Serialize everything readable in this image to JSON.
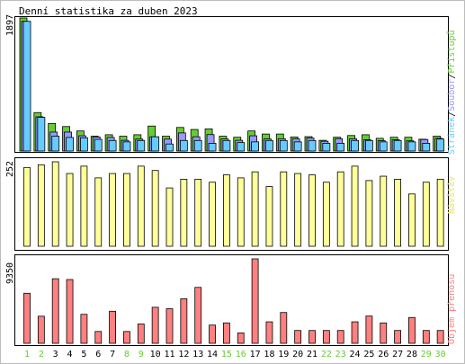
{
  "title": "Denní statistika za duben 2023",
  "colors": {
    "hits": "#66cc33",
    "files": "#9999ff",
    "pages": "#66ccff",
    "visits": "#ffff99",
    "kbytes": "#ff8080",
    "weekend_label": "#66cc33",
    "weekday_label": "#000000",
    "frame": "#000000"
  },
  "chart_data": [
    {
      "type": "bar",
      "panel": "hits_files_pages",
      "x": [
        "1",
        "2",
        "3",
        "4",
        "5",
        "6",
        "7",
        "8",
        "9",
        "10",
        "11",
        "12",
        "13",
        "14",
        "15",
        "16",
        "17",
        "18",
        "19",
        "20",
        "21",
        "22",
        "23",
        "24",
        "25",
        "26",
        "27",
        "28",
        "29",
        "30"
      ],
      "weekend": [
        1,
        2,
        8,
        9,
        15,
        16,
        22,
        23,
        29,
        30
      ],
      "ylim": [
        0,
        1897
      ],
      "y_tick_label": "1897",
      "side_label_parts": [
        "Stránek",
        "/",
        "Soubor",
        "/",
        "Přístupů"
      ],
      "series": [
        {
          "name": "Přístupů",
          "color_key": "hits",
          "values": [
            1897,
            548,
            393,
            349,
            286,
            211,
            232,
            211,
            232,
            356,
            211,
            336,
            307,
            315,
            211,
            196,
            286,
            242,
            242,
            200,
            205,
            152,
            196,
            221,
            232,
            181,
            196,
            196,
            168,
            211
          ]
        },
        {
          "name": "Soubor",
          "color_key": "files",
          "values": [
            1849,
            488,
            270,
            270,
            217,
            200,
            193,
            152,
            170,
            203,
            170,
            258,
            203,
            234,
            172,
            152,
            217,
            172,
            175,
            172,
            184,
            139,
            176,
            174,
            160,
            147,
            160,
            145,
            164,
            181
          ]
        },
        {
          "name": "Stránek",
          "color_key": "pages",
          "values": [
            1849,
            480,
            211,
            193,
            188,
            166,
            150,
            130,
            150,
            203,
            100,
            150,
            150,
            110,
            150,
            120,
            130,
            150,
            150,
            130,
            150,
            110,
            110,
            150,
            150,
            130,
            150,
            130,
            110,
            170
          ]
        }
      ]
    },
    {
      "type": "bar",
      "panel": "visits",
      "x": [
        "1",
        "2",
        "3",
        "4",
        "5",
        "6",
        "7",
        "8",
        "9",
        "10",
        "11",
        "12",
        "13",
        "14",
        "15",
        "16",
        "17",
        "18",
        "19",
        "20",
        "21",
        "22",
        "23",
        "24",
        "25",
        "26",
        "27",
        "28",
        "29",
        "30"
      ],
      "ylim": [
        0,
        252
      ],
      "y_tick_label": "252",
      "side_label": "Návštěv",
      "series": [
        {
          "name": "Návštěv",
          "color_key": "visits",
          "values": [
            235,
            243,
            252,
            217,
            239,
            204,
            217,
            217,
            239,
            226,
            174,
            200,
            200,
            191,
            213,
            204,
            222,
            178,
            222,
            217,
            213,
            191,
            222,
            239,
            196,
            209,
            200,
            156,
            191,
            200
          ]
        }
      ]
    },
    {
      "type": "bar",
      "panel": "kbytes",
      "x": [
        "1",
        "2",
        "3",
        "4",
        "5",
        "6",
        "7",
        "8",
        "9",
        "10",
        "11",
        "12",
        "13",
        "14",
        "15",
        "16",
        "17",
        "18",
        "19",
        "20",
        "21",
        "22",
        "23",
        "24",
        "25",
        "26",
        "27",
        "28",
        "29",
        "30"
      ],
      "ylim": [
        0,
        9350
      ],
      "y_tick_label": "9350",
      "side_label": "Objem přenosu",
      "series": [
        {
          "name": "Objem přenosu",
          "color_key": "kbytes",
          "values": [
            5540,
            3000,
            7150,
            7060,
            3210,
            1310,
            3550,
            1310,
            2140,
            3990,
            3830,
            4930,
            6190,
            2020,
            2260,
            1150,
            9350,
            2380,
            3410,
            1420,
            1420,
            1420,
            1420,
            2380,
            3020,
            2260,
            1420,
            2860,
            1420,
            1420
          ]
        }
      ]
    }
  ]
}
